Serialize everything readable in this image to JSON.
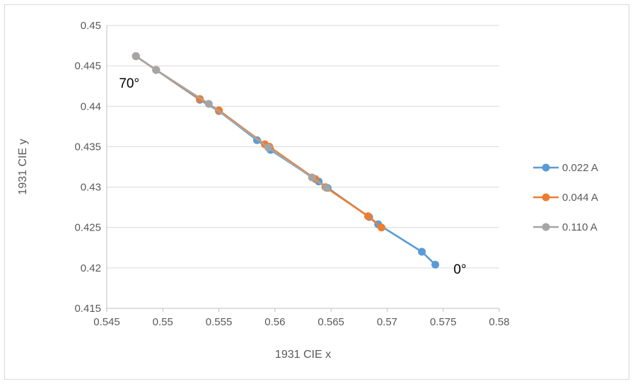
{
  "chart_data": {
    "type": "scatter",
    "title": "",
    "xlabel": "1931 CIE x",
    "ylabel": "1931 CIE y",
    "xlim": [
      0.545,
      0.58
    ],
    "ylim": [
      0.415,
      0.45
    ],
    "xticks": [
      "0.545",
      "0.55",
      "0.555",
      "0.56",
      "0.565",
      "0.57",
      "0.575",
      "0.58"
    ],
    "yticks": [
      "0.415",
      "0.42",
      "0.425",
      "0.43",
      "0.435",
      "0.44",
      "0.445",
      "0.45"
    ],
    "grid": "horizontal",
    "legend_position": "right",
    "series": [
      {
        "name": "0.022 A",
        "color": "#5b9bd5",
        "points": [
          [
            0.5743,
            0.4204
          ],
          [
            0.5731,
            0.422
          ],
          [
            0.5692,
            0.4254
          ],
          [
            0.5684,
            0.4263
          ],
          [
            0.5647,
            0.4299
          ],
          [
            0.5639,
            0.4307
          ],
          [
            0.5596,
            0.4346
          ],
          [
            0.5584,
            0.4358
          ],
          [
            0.555,
            0.4394
          ],
          [
            0.5533,
            0.4408
          ],
          [
            0.5494,
            0.4445
          ],
          [
            0.5476,
            0.4462
          ]
        ]
      },
      {
        "name": "0.044 A",
        "color": "#ed7d31",
        "points": [
          [
            0.5695,
            0.425
          ],
          [
            0.5683,
            0.4264
          ],
          [
            0.5645,
            0.43
          ],
          [
            0.5636,
            0.431
          ],
          [
            0.5595,
            0.435
          ],
          [
            0.5591,
            0.4353
          ],
          [
            0.555,
            0.4395
          ],
          [
            0.5533,
            0.4409
          ],
          [
            0.5494,
            0.4445
          ],
          [
            0.5476,
            0.4462
          ]
        ]
      },
      {
        "name": "0.110 A",
        "color": "#a5a5a5",
        "points": [
          [
            0.5646,
            0.4299
          ],
          [
            0.5633,
            0.4312
          ],
          [
            0.5594,
            0.4349
          ],
          [
            0.5541,
            0.4403
          ],
          [
            0.5494,
            0.4445
          ],
          [
            0.5476,
            0.4462
          ]
        ]
      }
    ],
    "annotations": [
      {
        "text": "70°",
        "x": 0.547,
        "y": 0.4423
      },
      {
        "text": "0°",
        "x": 0.5765,
        "y": 0.4193
      }
    ]
  }
}
